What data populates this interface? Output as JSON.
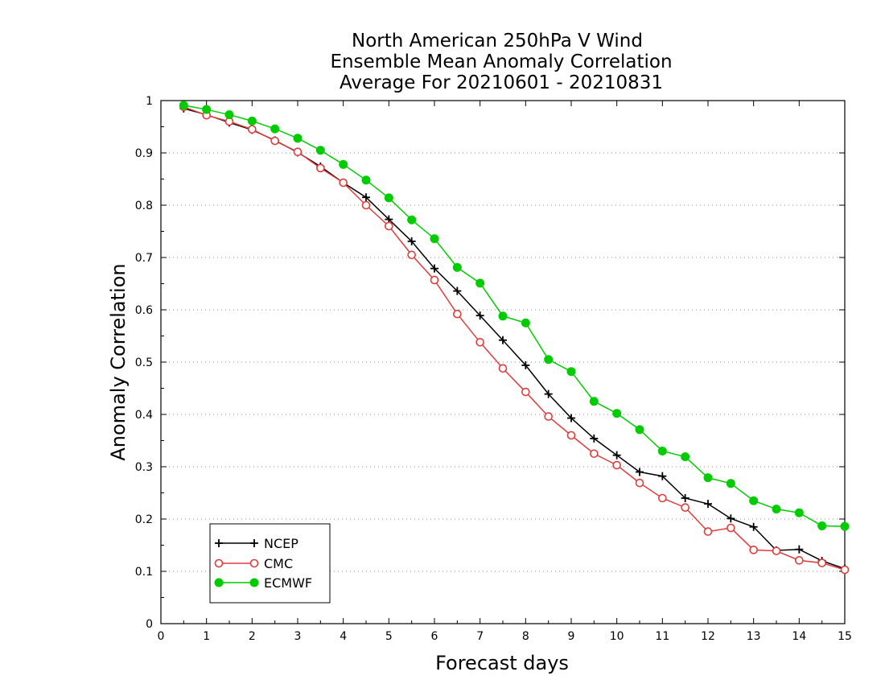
{
  "chart_data": {
    "type": "line",
    "title_lines": [
      "North American 250hPa V Wind",
      "Ensemble Mean Anomaly Correlation",
      "Average For 20210601 - 20210831"
    ],
    "xlabel": "Forecast days",
    "ylabel": "Anomaly Correlation",
    "xlim": [
      0,
      15
    ],
    "ylim": [
      0,
      1
    ],
    "x_ticks": [
      "0",
      "1",
      "2",
      "3",
      "4",
      "5",
      "6",
      "7",
      "8",
      "9",
      "10",
      "11",
      "12",
      "13",
      "14",
      "15"
    ],
    "y_ticks": [
      "0",
      "0.1",
      "0.2",
      "0.3",
      "0.4",
      "0.5",
      "0.6",
      "0.7",
      "0.8",
      "0.9",
      "1"
    ],
    "grid": "dotted horizontal",
    "legend_position": "bottom-left",
    "x": [
      0.5,
      1,
      1.5,
      2,
      2.5,
      3,
      3.5,
      4,
      4.5,
      5,
      5.5,
      6,
      6.5,
      7,
      7.5,
      8,
      8.5,
      9,
      9.5,
      10,
      10.5,
      11,
      11.5,
      12,
      12.5,
      13,
      13.5,
      14,
      14.5,
      15
    ],
    "series": [
      {
        "name": "NCEP",
        "color": "#000000",
        "marker": "plus",
        "values": [
          0.985,
          0.973,
          0.958,
          0.944,
          0.924,
          0.901,
          0.874,
          0.843,
          0.815,
          0.773,
          0.731,
          0.679,
          0.636,
          0.589,
          0.542,
          0.494,
          0.439,
          0.393,
          0.354,
          0.322,
          0.29,
          0.282,
          0.24,
          0.229,
          0.201,
          0.185,
          0.14,
          0.142,
          0.12,
          0.105
        ]
      },
      {
        "name": "CMC",
        "color": "#e03c3c",
        "marker": "open-circle",
        "values": [
          0.988,
          0.972,
          0.96,
          0.945,
          0.923,
          0.902,
          0.871,
          0.843,
          0.8,
          0.76,
          0.705,
          0.657,
          0.592,
          0.538,
          0.488,
          0.443,
          0.396,
          0.36,
          0.325,
          0.303,
          0.269,
          0.24,
          0.222,
          0.176,
          0.183,
          0.141,
          0.139,
          0.121,
          0.116,
          0.103
        ]
      },
      {
        "name": "ECMWF",
        "color": "#00cc00",
        "marker": "filled-circle",
        "values": [
          0.991,
          0.983,
          0.973,
          0.961,
          0.946,
          0.928,
          0.905,
          0.878,
          0.848,
          0.814,
          0.772,
          0.736,
          0.681,
          0.651,
          0.588,
          0.575,
          0.505,
          0.482,
          0.425,
          0.402,
          0.371,
          0.33,
          0.319,
          0.279,
          0.268,
          0.235,
          0.219,
          0.212,
          0.187,
          0.186
        ]
      }
    ]
  }
}
